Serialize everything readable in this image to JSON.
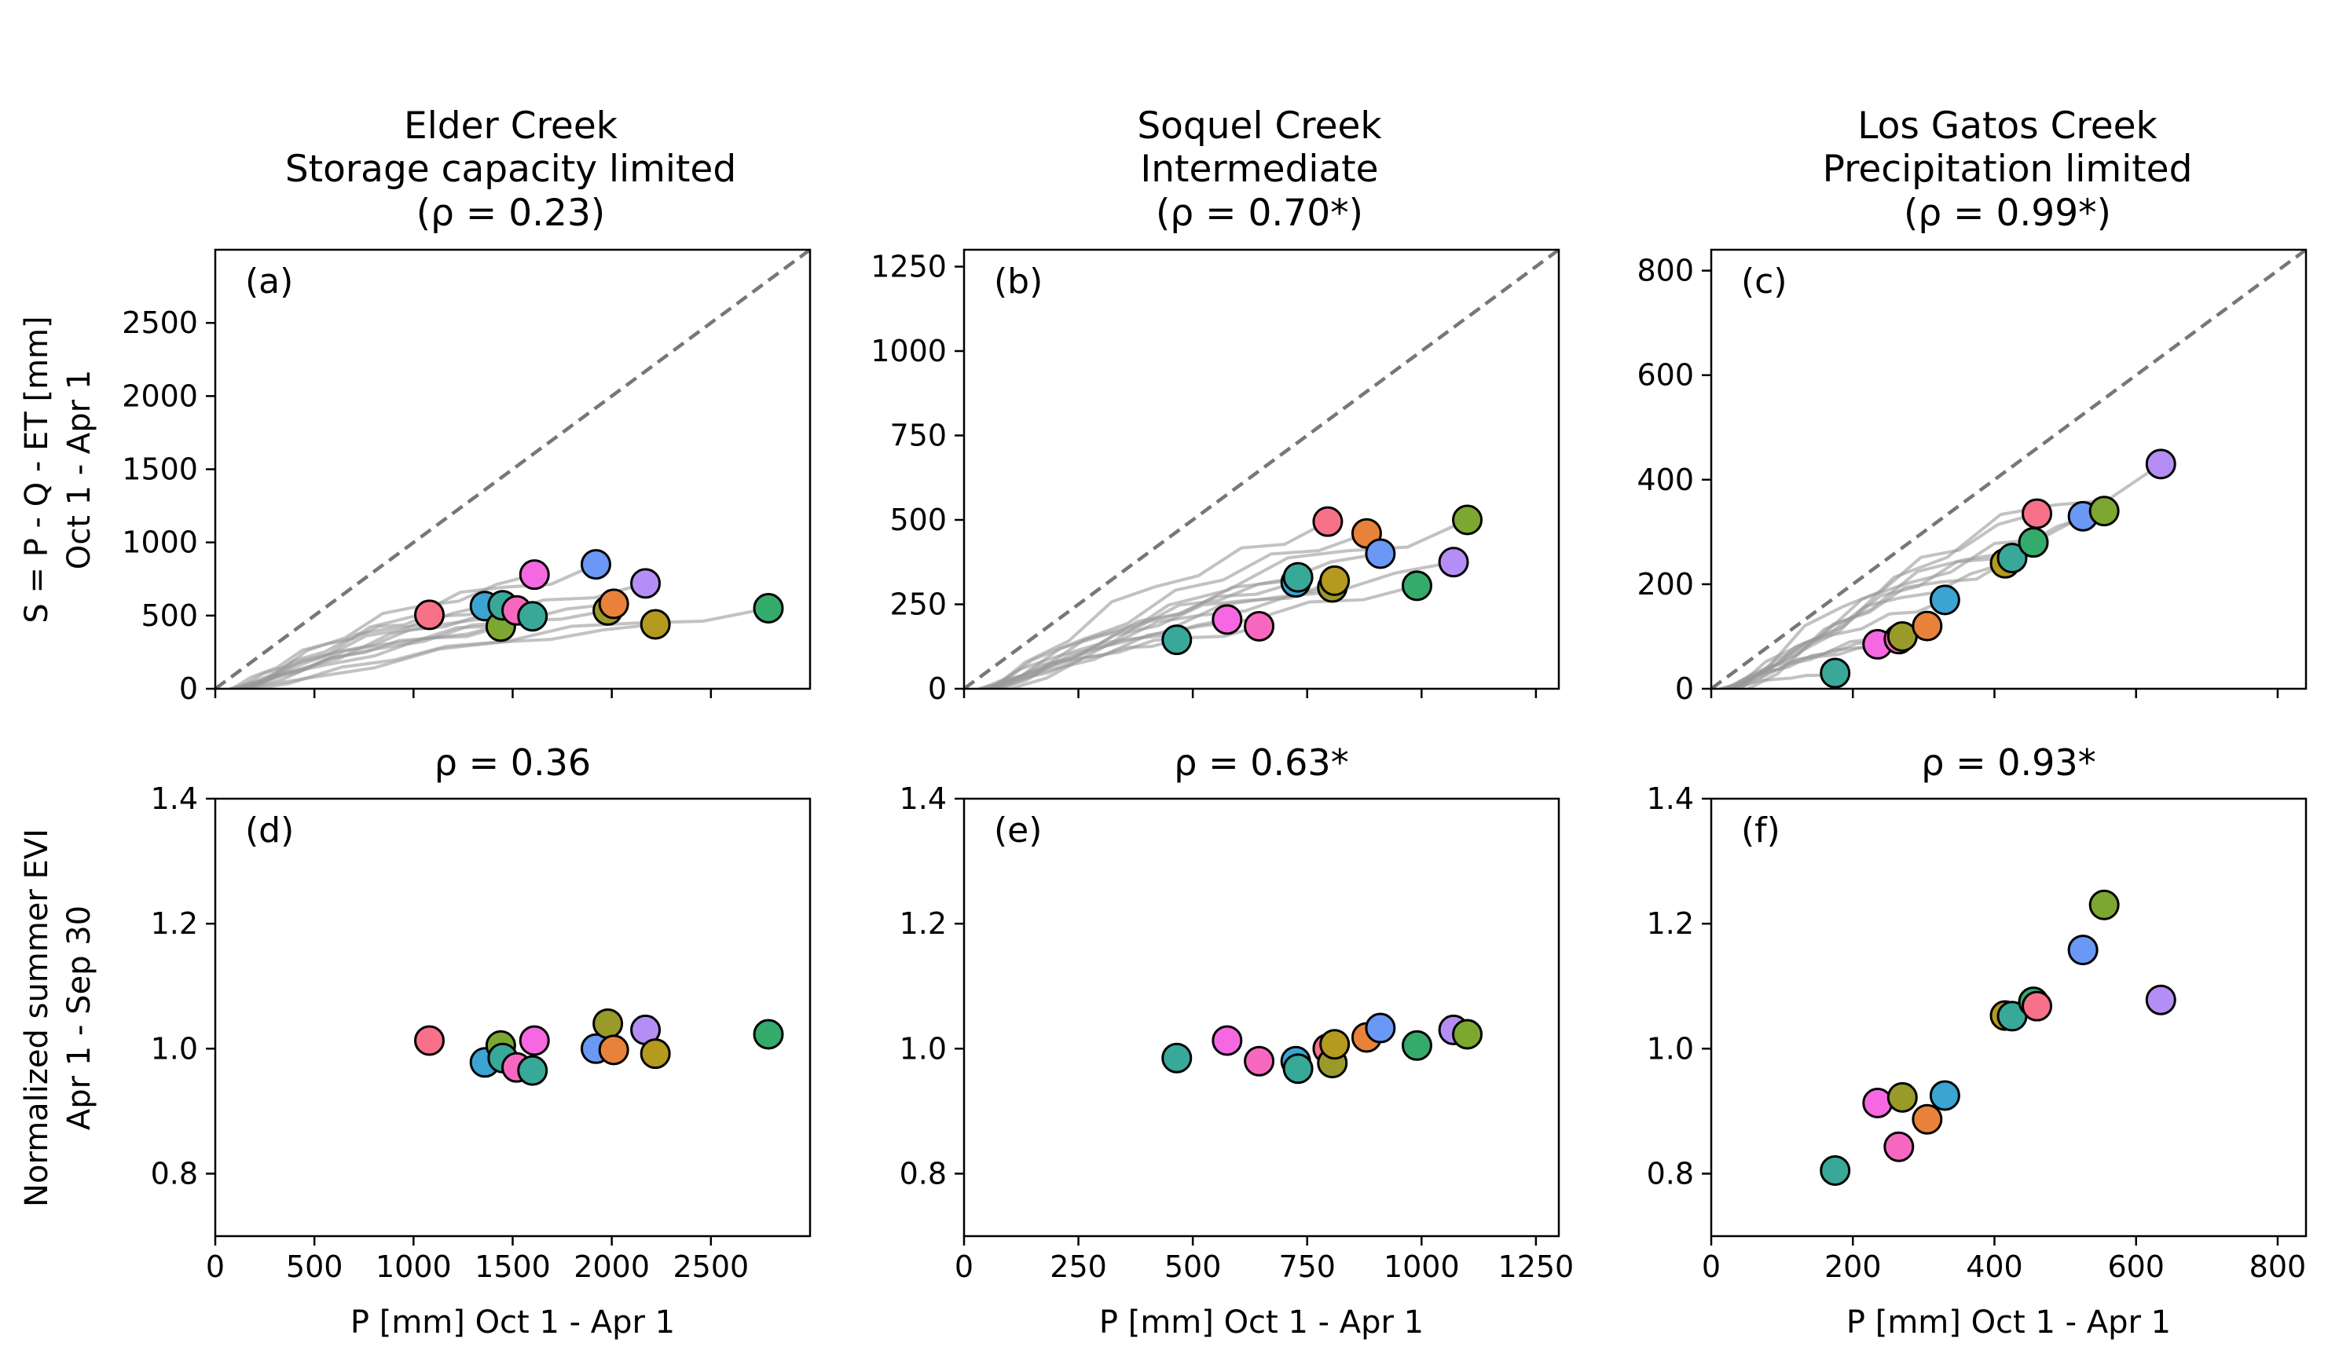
{
  "figure": {
    "columns": [
      {
        "title_lines": [
          "Elder Creek",
          "Storage capacity limited",
          "(ρ = 0.23)"
        ]
      },
      {
        "title_lines": [
          "Soquel Creek",
          "Intermediate",
          "(ρ = 0.70*)"
        ]
      },
      {
        "title_lines": [
          "Los Gatos Creek",
          "Precipitation limited",
          "(ρ = 0.99*)"
        ]
      }
    ],
    "row_labels": {
      "top": [
        "S = P - Q - ET [mm]",
        "Oct 1 - Apr 1"
      ],
      "bottom": [
        "Normalized summer EVI",
        "Apr 1 - Sep 30"
      ]
    },
    "xlabel": "P [mm] Oct 1 - Apr 1"
  },
  "colors": {
    "red": "#f77189",
    "orange": "#e8823a",
    "olive": "#b49a1f",
    "olivegreen": "#7ca831",
    "green": "#35ab6b",
    "teal": "#38a899",
    "cyan": "#3ba4d3",
    "blue": "#6a98f4",
    "purple": "#b48ef4",
    "magenta": "#f668e2",
    "pink": "#f668c0",
    "darkolive": "#999a2a",
    "trace": "#9a9a9a",
    "one_to_one": "#777777"
  },
  "chart_data": [
    {
      "panel": "(a)",
      "type": "scatter",
      "xlim": [
        0,
        3000
      ],
      "ylim": [
        0,
        3000
      ],
      "xticks": [
        0,
        500,
        1000,
        1500,
        2000,
        2500
      ],
      "yticks": [
        0,
        500,
        1000,
        1500,
        2000,
        2500
      ],
      "one_to_one": true,
      "points": [
        {
          "x": 1080,
          "y": 505,
          "c": "red"
        },
        {
          "x": 1360,
          "y": 565,
          "c": "cyan"
        },
        {
          "x": 1440,
          "y": 425,
          "c": "olivegreen"
        },
        {
          "x": 1450,
          "y": 570,
          "c": "teal"
        },
        {
          "x": 1520,
          "y": 535,
          "c": "pink"
        },
        {
          "x": 1600,
          "y": 495,
          "c": "teal"
        },
        {
          "x": 1610,
          "y": 780,
          "c": "magenta"
        },
        {
          "x": 1920,
          "y": 850,
          "c": "blue"
        },
        {
          "x": 1980,
          "y": 535,
          "c": "darkolive"
        },
        {
          "x": 2010,
          "y": 580,
          "c": "orange"
        },
        {
          "x": 2170,
          "y": 720,
          "c": "purple"
        },
        {
          "x": 2220,
          "y": 440,
          "c": "olive"
        },
        {
          "x": 2790,
          "y": 550,
          "c": "green"
        }
      ]
    },
    {
      "panel": "(b)",
      "type": "scatter",
      "xlim": [
        0,
        1300
      ],
      "ylim": [
        0,
        1300
      ],
      "xticks": [
        0,
        250,
        500,
        750,
        1000,
        1250
      ],
      "yticks": [
        0,
        250,
        500,
        750,
        1000,
        1250
      ],
      "one_to_one": true,
      "points": [
        {
          "x": 465,
          "y": 145,
          "c": "teal"
        },
        {
          "x": 575,
          "y": 205,
          "c": "magenta"
        },
        {
          "x": 645,
          "y": 185,
          "c": "pink"
        },
        {
          "x": 725,
          "y": 315,
          "c": "cyan"
        },
        {
          "x": 730,
          "y": 330,
          "c": "teal"
        },
        {
          "x": 795,
          "y": 495,
          "c": "red"
        },
        {
          "x": 805,
          "y": 300,
          "c": "darkolive"
        },
        {
          "x": 810,
          "y": 320,
          "c": "olive"
        },
        {
          "x": 880,
          "y": 460,
          "c": "orange"
        },
        {
          "x": 910,
          "y": 400,
          "c": "blue"
        },
        {
          "x": 990,
          "y": 305,
          "c": "green"
        },
        {
          "x": 1070,
          "y": 375,
          "c": "purple"
        },
        {
          "x": 1100,
          "y": 500,
          "c": "olivegreen"
        }
      ]
    },
    {
      "panel": "(c)",
      "type": "scatter",
      "xlim": [
        0,
        840
      ],
      "ylim": [
        0,
        840
      ],
      "xticks": [
        0,
        200,
        400,
        600,
        800
      ],
      "yticks": [
        0,
        200,
        400,
        600,
        800
      ],
      "one_to_one": true,
      "points": [
        {
          "x": 175,
          "y": 30,
          "c": "teal"
        },
        {
          "x": 235,
          "y": 85,
          "c": "magenta"
        },
        {
          "x": 265,
          "y": 95,
          "c": "pink"
        },
        {
          "x": 270,
          "y": 100,
          "c": "darkolive"
        },
        {
          "x": 305,
          "y": 120,
          "c": "orange"
        },
        {
          "x": 330,
          "y": 170,
          "c": "cyan"
        },
        {
          "x": 415,
          "y": 240,
          "c": "olive"
        },
        {
          "x": 425,
          "y": 250,
          "c": "teal"
        },
        {
          "x": 455,
          "y": 280,
          "c": "green"
        },
        {
          "x": 460,
          "y": 335,
          "c": "red"
        },
        {
          "x": 525,
          "y": 330,
          "c": "blue"
        },
        {
          "x": 555,
          "y": 340,
          "c": "olivegreen"
        },
        {
          "x": 635,
          "y": 430,
          "c": "purple"
        }
      ]
    },
    {
      "panel": "(d)",
      "type": "scatter",
      "title": "ρ = 0.36",
      "xlim": [
        0,
        3000
      ],
      "ylim": [
        0.7,
        1.4
      ],
      "xticks": [
        0,
        500,
        1000,
        1500,
        2000,
        2500
      ],
      "yticks": [
        0.8,
        1.0,
        1.2,
        1.4
      ],
      "ytick_labels": [
        "0.8",
        "1.0",
        "1.2",
        "1.4"
      ],
      "points": [
        {
          "x": 1080,
          "y": 1.013,
          "c": "red"
        },
        {
          "x": 1360,
          "y": 0.978,
          "c": "cyan"
        },
        {
          "x": 1440,
          "y": 1.005,
          "c": "olivegreen"
        },
        {
          "x": 1450,
          "y": 0.985,
          "c": "teal"
        },
        {
          "x": 1520,
          "y": 0.97,
          "c": "pink"
        },
        {
          "x": 1600,
          "y": 0.965,
          "c": "teal"
        },
        {
          "x": 1610,
          "y": 1.013,
          "c": "magenta"
        },
        {
          "x": 1920,
          "y": 1.0,
          "c": "blue"
        },
        {
          "x": 1980,
          "y": 1.04,
          "c": "darkolive"
        },
        {
          "x": 2010,
          "y": 0.998,
          "c": "orange"
        },
        {
          "x": 2170,
          "y": 1.03,
          "c": "purple"
        },
        {
          "x": 2220,
          "y": 0.992,
          "c": "olive"
        },
        {
          "x": 2790,
          "y": 1.023,
          "c": "green"
        }
      ]
    },
    {
      "panel": "(e)",
      "type": "scatter",
      "title": "ρ = 0.63*",
      "xlim": [
        0,
        1300
      ],
      "ylim": [
        0.7,
        1.4
      ],
      "xticks": [
        0,
        250,
        500,
        750,
        1000,
        1250
      ],
      "yticks": [
        0.8,
        1.0,
        1.2,
        1.4
      ],
      "ytick_labels": [
        "0.8",
        "1.0",
        "1.2",
        "1.4"
      ],
      "points": [
        {
          "x": 465,
          "y": 0.985,
          "c": "teal"
        },
        {
          "x": 575,
          "y": 1.013,
          "c": "magenta"
        },
        {
          "x": 645,
          "y": 0.98,
          "c": "pink"
        },
        {
          "x": 725,
          "y": 0.98,
          "c": "cyan"
        },
        {
          "x": 730,
          "y": 0.968,
          "c": "teal"
        },
        {
          "x": 795,
          "y": 1.0,
          "c": "red"
        },
        {
          "x": 805,
          "y": 0.977,
          "c": "darkolive"
        },
        {
          "x": 810,
          "y": 1.007,
          "c": "olive"
        },
        {
          "x": 880,
          "y": 1.018,
          "c": "orange"
        },
        {
          "x": 910,
          "y": 1.033,
          "c": "blue"
        },
        {
          "x": 990,
          "y": 1.005,
          "c": "green"
        },
        {
          "x": 1070,
          "y": 1.03,
          "c": "purple"
        },
        {
          "x": 1100,
          "y": 1.023,
          "c": "olivegreen"
        }
      ]
    },
    {
      "panel": "(f)",
      "type": "scatter",
      "title": "ρ = 0.93*",
      "xlim": [
        0,
        840
      ],
      "ylim": [
        0.7,
        1.4
      ],
      "xticks": [
        0,
        200,
        400,
        600,
        800
      ],
      "yticks": [
        0.8,
        1.0,
        1.2,
        1.4
      ],
      "ytick_labels": [
        "0.8",
        "1.0",
        "1.2",
        "1.4"
      ],
      "points": [
        {
          "x": 175,
          "y": 0.805,
          "c": "teal"
        },
        {
          "x": 235,
          "y": 0.913,
          "c": "magenta"
        },
        {
          "x": 265,
          "y": 0.843,
          "c": "pink"
        },
        {
          "x": 270,
          "y": 0.922,
          "c": "darkolive"
        },
        {
          "x": 305,
          "y": 0.887,
          "c": "orange"
        },
        {
          "x": 330,
          "y": 0.925,
          "c": "cyan"
        },
        {
          "x": 415,
          "y": 1.053,
          "c": "olive"
        },
        {
          "x": 425,
          "y": 1.052,
          "c": "teal"
        },
        {
          "x": 455,
          "y": 1.075,
          "c": "green"
        },
        {
          "x": 460,
          "y": 1.068,
          "c": "red"
        },
        {
          "x": 525,
          "y": 1.158,
          "c": "blue"
        },
        {
          "x": 555,
          "y": 1.23,
          "c": "olivegreen"
        },
        {
          "x": 635,
          "y": 1.078,
          "c": "purple"
        }
      ]
    }
  ]
}
